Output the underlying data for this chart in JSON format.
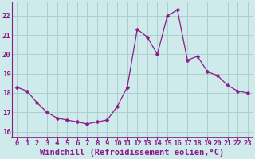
{
  "x": [
    0,
    1,
    2,
    3,
    4,
    5,
    6,
    7,
    8,
    9,
    10,
    11,
    12,
    13,
    14,
    15,
    16,
    17,
    18,
    19,
    20,
    21,
    22,
    23
  ],
  "y": [
    18.3,
    18.1,
    17.5,
    17.0,
    16.7,
    16.6,
    16.5,
    16.4,
    16.5,
    16.6,
    17.3,
    18.3,
    21.3,
    20.9,
    20.0,
    22.0,
    22.3,
    19.7,
    19.9,
    19.1,
    18.9,
    18.4,
    18.1,
    18.0
  ],
  "line_color": "#8B1A8B",
  "marker": "D",
  "marker_size": 2.5,
  "bg_color": "#ceeaea",
  "grid_color": "#aacfcf",
  "spine_color": "#8B1A8B",
  "xlabel": "Windchill (Refroidissement éolien,°C)",
  "xlabel_fontsize": 7.5,
  "tick_fontsize": 6.5,
  "ylim": [
    15.7,
    22.7
  ],
  "yticks": [
    16,
    17,
    18,
    19,
    20,
    21,
    22
  ],
  "xticks": [
    0,
    1,
    2,
    3,
    4,
    5,
    6,
    7,
    8,
    9,
    10,
    11,
    12,
    13,
    14,
    15,
    16,
    17,
    18,
    19,
    20,
    21,
    22,
    23
  ],
  "tick_color": "#8B1A8B",
  "label_color": "#8B1A8B"
}
